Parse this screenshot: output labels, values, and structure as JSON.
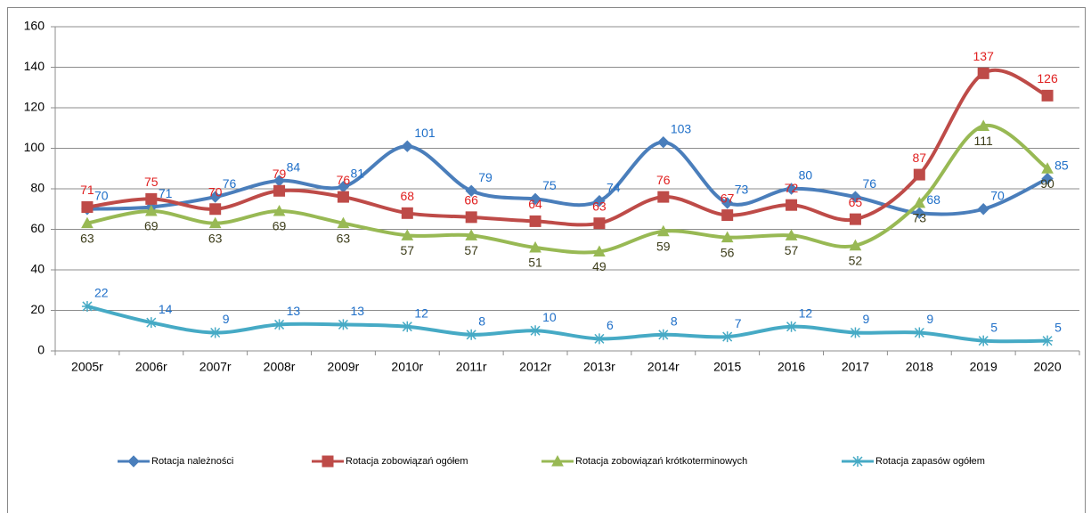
{
  "chart_data": {
    "type": "line",
    "categories": [
      "2005r",
      "2006r",
      "2007r",
      "2008r",
      "2009r",
      "2010r",
      "2011r",
      "2012r",
      "2013r",
      "2014r",
      "2015",
      "2016",
      "2017",
      "2018",
      "2019",
      "2020"
    ],
    "series": [
      {
        "name": "Rotacja należności",
        "color": "#4a7ebb",
        "label_color": "#1f6fc8",
        "marker": "diamond",
        "values": [
          70,
          71,
          76,
          84,
          81,
          101,
          79,
          75,
          74,
          103,
          73,
          80,
          76,
          68,
          70,
          85
        ]
      },
      {
        "name": "Rotacja zobowiązań ogółem",
        "color": "#be4b48",
        "label_color": "#e02020",
        "marker": "square",
        "values": [
          71,
          75,
          70,
          79,
          76,
          68,
          66,
          64,
          63,
          76,
          67,
          72,
          65,
          87,
          137,
          126
        ]
      },
      {
        "name": "Rotacja zobowiązań krótkoterminowych",
        "color": "#98b954",
        "label_color": "#3d3d1a",
        "marker": "triangle",
        "values": [
          63,
          69,
          63,
          69,
          63,
          57,
          57,
          51,
          49,
          59,
          56,
          57,
          52,
          73,
          111,
          90
        ]
      },
      {
        "name": "Rotacja zapasów ogółem",
        "color": "#46aac5",
        "label_color": "#1f6fc8",
        "marker": "star",
        "values": [
          22,
          14,
          9,
          13,
          13,
          12,
          8,
          10,
          6,
          8,
          7,
          12,
          9,
          9,
          5,
          5
        ]
      }
    ],
    "ylim": [
      0,
      160
    ],
    "yticks": [
      0,
      20,
      40,
      60,
      80,
      100,
      120,
      140,
      160
    ],
    "grid": true,
    "legend": "bottom"
  }
}
